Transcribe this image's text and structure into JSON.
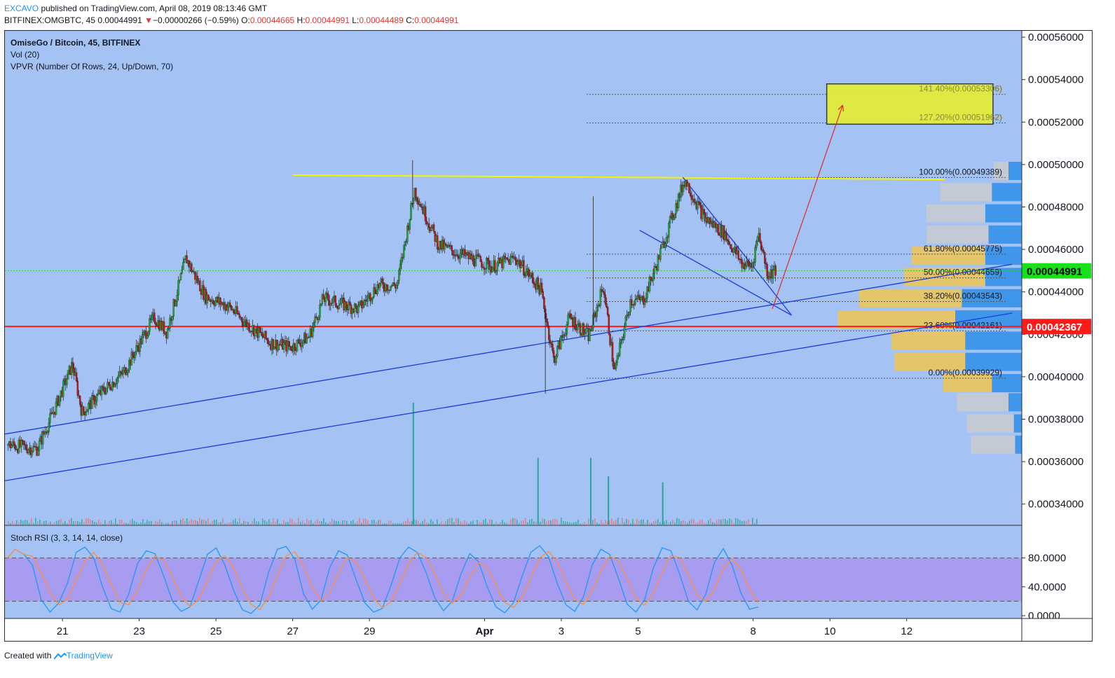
{
  "header": {
    "author": "EXCAVO",
    "published_text": " published on TradingView.com, April 08, 2019 08:13:46 GMT",
    "symbol": "BITFINEX:OMGBTC, 45",
    "last_price": "0.00044991",
    "down_symbol": "▼",
    "change": "−0.00000266 (−0.59%)",
    "o_label": "O:",
    "o_value": "0.00044665",
    "h_label": "H:",
    "h_value": "0.00044991",
    "l_label": "L:",
    "l_value": "0.00044489",
    "c_label": "C:",
    "c_value": "0.00044991"
  },
  "legend": {
    "title": "OmiseGo / Bitcoin, 45, BITFINEX",
    "volume": "Vol (20)",
    "vpvr": "VPVR (Number Of Rows, 24, Up/Down, 70)",
    "stoch": "Stoch RSI (3, 3, 14, 14, close)"
  },
  "footer": {
    "created_with": "Created with",
    "brand": "TradingView"
  },
  "colors": {
    "background": "#a4c2f4",
    "bull": "#26a641",
    "bear": "#b71c1c",
    "trendline": "#1a3bdb",
    "resistance": "#f5f500",
    "support": "#ff1a1a",
    "target_box": "#e3ec3a",
    "current_price_badge": "#18e018",
    "support_badge": "#ff1a1a",
    "stoch_band": "#a89cf0"
  },
  "chart_data": {
    "type": "candlestick",
    "y_axis": {
      "range": [
        0.00033,
        0.000563
      ],
      "tick_values": [
        0.00034,
        0.00036,
        0.00038,
        0.0004,
        0.00042,
        0.00044,
        0.00046,
        0.00048,
        0.0005,
        0.00052,
        0.00054,
        0.00056
      ],
      "tick_labels": [
        "0.00034000",
        "0.00036000",
        "0.00038000",
        "0.00040000",
        "0.00042000",
        "0.00044000",
        "0.00046000",
        "0.00048000",
        "0.00050000",
        "0.00052000",
        "0.00054000",
        "0.00056000"
      ]
    },
    "x_axis": {
      "range_days": [
        "2019-03-19 12:00",
        "2019-04-15 00:00"
      ],
      "ticks": [
        {
          "label": "21",
          "date": "2019-03-21"
        },
        {
          "label": "23",
          "date": "2019-03-23"
        },
        {
          "label": "25",
          "date": "2019-03-25"
        },
        {
          "label": "27",
          "date": "2019-03-27"
        },
        {
          "label": "29",
          "date": "2019-03-29"
        },
        {
          "label": "Apr",
          "date": "2019-04-01"
        },
        {
          "label": "3",
          "date": "2019-04-03"
        },
        {
          "label": "5",
          "date": "2019-04-05"
        },
        {
          "label": "8",
          "date": "2019-04-08"
        },
        {
          "label": "10",
          "date": "2019-04-10"
        },
        {
          "label": "12",
          "date": "2019-04-12"
        }
      ]
    },
    "price_path": [
      [
        "2019-03-19 14:00",
        0.000368
      ],
      [
        "2019-03-20 09:00",
        0.000366
      ],
      [
        "2019-03-20 20:00",
        0.000385
      ],
      [
        "2019-03-21 07:00",
        0.000406
      ],
      [
        "2019-03-21 13:00",
        0.000383
      ],
      [
        "2019-03-22 00:00",
        0.000392
      ],
      [
        "2019-03-22 15:00",
        0.000402
      ],
      [
        "2019-03-23 10:00",
        0.000428
      ],
      [
        "2019-03-23 18:00",
        0.000421
      ],
      [
        "2019-03-24 06:00",
        0.000456
      ],
      [
        "2019-03-24 18:00",
        0.000438
      ],
      [
        "2019-03-25 09:00",
        0.000433
      ],
      [
        "2019-03-25 20:00",
        0.000425
      ],
      [
        "2019-03-26 11:00",
        0.000416
      ],
      [
        "2019-03-27 00:00",
        0.000414
      ],
      [
        "2019-03-27 11:00",
        0.000419
      ],
      [
        "2019-03-27 20:00",
        0.000437
      ],
      [
        "2019-03-28 08:00",
        0.000434
      ],
      [
        "2019-03-28 18:00",
        0.000432
      ],
      [
        "2019-03-29 06:00",
        0.000443
      ],
      [
        "2019-03-29 18:00",
        0.000443
      ],
      [
        "2019-03-30 05:00",
        0.000488
      ],
      [
        "2019-03-30 20:00",
        0.000462
      ],
      [
        "2019-03-31 12:00",
        0.000457
      ],
      [
        "2019-04-01 06:00",
        0.000452
      ],
      [
        "2019-04-01 20:00",
        0.000456
      ],
      [
        "2019-04-02 12:00",
        0.000441
      ],
      [
        "2019-04-02 20:00",
        0.000408
      ],
      [
        "2019-04-03 06:00",
        0.000428
      ],
      [
        "2019-04-03 18:00",
        0.000419
      ],
      [
        "2019-04-04 03:00",
        0.000443
      ],
      [
        "2019-04-04 10:00",
        0.000402
      ],
      [
        "2019-04-04 20:00",
        0.000436
      ],
      [
        "2019-04-05 04:00",
        0.000436
      ],
      [
        "2019-04-05 12:00",
        0.000452
      ],
      [
        "2019-04-05 21:00",
        0.000473
      ],
      [
        "2019-04-06 06:00",
        0.000493
      ],
      [
        "2019-04-06 18:00",
        0.000475
      ],
      [
        "2019-04-07 06:00",
        0.000468
      ],
      [
        "2019-04-07 18:00",
        0.000453
      ],
      [
        "2019-04-08 00:00",
        0.000452
      ],
      [
        "2019-04-08 04:00",
        0.000468
      ],
      [
        "2019-04-08 10:00",
        0.000448
      ],
      [
        "2019-04-08 14:00",
        0.00045
      ]
    ],
    "notable_wicks": [
      {
        "date": "2019-03-30 03:00",
        "high": 0.000502
      },
      {
        "date": "2019-04-02 14:00",
        "low": 0.000392
      },
      {
        "date": "2019-04-03 20:00",
        "high": 0.000485
      }
    ],
    "volume_spikes": [
      {
        "date": "2019-03-30 03:00",
        "relative": 1.0
      },
      {
        "date": "2019-04-02 09:00",
        "relative": 0.55
      },
      {
        "date": "2019-04-03 18:00",
        "relative": 0.55
      },
      {
        "date": "2019-04-04 05:00",
        "relative": 0.4
      },
      {
        "date": "2019-04-05 15:00",
        "relative": 0.35
      }
    ],
    "fib_levels": [
      {
        "label": "141.40%(0.00053306)",
        "value": 0.00053306
      },
      {
        "label": "127.20%(0.00051962)",
        "value": 0.00051962
      },
      {
        "label": "100.00%(0.00049389)",
        "value": 0.00049389
      },
      {
        "label": "61.80%(0.00045775)",
        "value": 0.00045775
      },
      {
        "label": "50.00%(0.00044659)",
        "value": 0.00044659
      },
      {
        "label": "38.20%(0.00043543)",
        "value": 0.00043543
      },
      {
        "label": "23.60%(0.00042161)",
        "value": 0.00042161
      },
      {
        "label": "0.00%(0.00039929)",
        "value": 0.00039929
      }
    ],
    "current_price": {
      "label": "0.00044991",
      "value": 0.00044991
    },
    "support_line": {
      "label": "0.00042367",
      "value": 0.00042367
    },
    "resistance_line": {
      "start": [
        "2019-03-27 00:00",
        0.000495
      ],
      "end": [
        "2019-04-13 00:00",
        0.000493
      ]
    },
    "trendlines": [
      {
        "start": [
          "2019-03-19 12:00",
          0.000373
        ],
        "end": [
          "2019-04-14 18:00",
          0.000453
        ]
      },
      {
        "start": [
          "2019-03-19 12:00",
          0.000351
        ],
        "end": [
          "2019-04-14 18:00",
          0.00043
        ]
      },
      {
        "start": [
          "2019-04-06 04:00",
          0.000494
        ],
        "end": [
          "2019-04-09 00:00",
          0.000429
        ]
      },
      {
        "start": [
          "2019-04-05 01:00",
          0.000469
        ],
        "end": [
          "2019-04-09 00:00",
          0.000429
        ]
      }
    ],
    "projection_arrow": {
      "start": [
        "2019-04-08 12:00",
        0.000432
      ],
      "end": [
        "2019-04-10 08:00",
        0.000528
      ]
    },
    "target_zone": {
      "x_start": "2019-04-09 22:00",
      "x_end": "2019-04-14 06:00",
      "y_low": 0.000519,
      "y_high": 0.000538
    },
    "vpvr_profile": [
      {
        "price": 0.000368,
        "up": 0.3,
        "down": 0.1
      },
      {
        "price": 0.000378,
        "up": 0.32,
        "down": 0.12
      },
      {
        "price": 0.000388,
        "up": 0.35,
        "down": 0.2
      },
      {
        "price": 0.000397,
        "up": 0.33,
        "down": 0.45
      },
      {
        "price": 0.000407,
        "up": 0.48,
        "down": 0.85
      },
      {
        "price": 0.000417,
        "up": 0.5,
        "down": 0.85
      },
      {
        "price": 0.000427,
        "up": 0.8,
        "down": 1.0
      },
      {
        "price": 0.000437,
        "up": 0.7,
        "down": 0.9
      },
      {
        "price": 0.000447,
        "up": 0.55,
        "down": 0.55
      },
      {
        "price": 0.000457,
        "up": 0.5,
        "down": 0.55
      },
      {
        "price": 0.000467,
        "up": 0.42,
        "down": 0.5
      },
      {
        "price": 0.000477,
        "up": 0.4,
        "down": 0.55
      },
      {
        "price": 0.000487,
        "up": 0.35,
        "down": 0.45
      },
      {
        "price": 0.000497,
        "up": 0.1,
        "down": 0.2
      }
    ],
    "stoch_rsi": {
      "y_range": [
        0,
        100
      ],
      "tick_values": [
        0,
        40,
        80
      ],
      "tick_labels": [
        "0.0000",
        "40.0000",
        "80.0000"
      ],
      "bands": [
        20,
        80
      ],
      "k_series": [
        78,
        92,
        85,
        70,
        22,
        5,
        18,
        45,
        88,
        95,
        80,
        40,
        10,
        5,
        30,
        72,
        90,
        86,
        55,
        20,
        6,
        12,
        48,
        85,
        94,
        70,
        35,
        8,
        3,
        15,
        60,
        92,
        96,
        78,
        30,
        9,
        22,
        67,
        90,
        84,
        50,
        18,
        5,
        10,
        42,
        80,
        95,
        88,
        60,
        25,
        7,
        20,
        58,
        86,
        75,
        40,
        12,
        4,
        18,
        55,
        88,
        97,
        82,
        45,
        15,
        6,
        26,
        70,
        92,
        85,
        52,
        16,
        5,
        22,
        66,
        94,
        90,
        58,
        20,
        8,
        30,
        74,
        93,
        70,
        32,
        9,
        12
      ]
    }
  }
}
